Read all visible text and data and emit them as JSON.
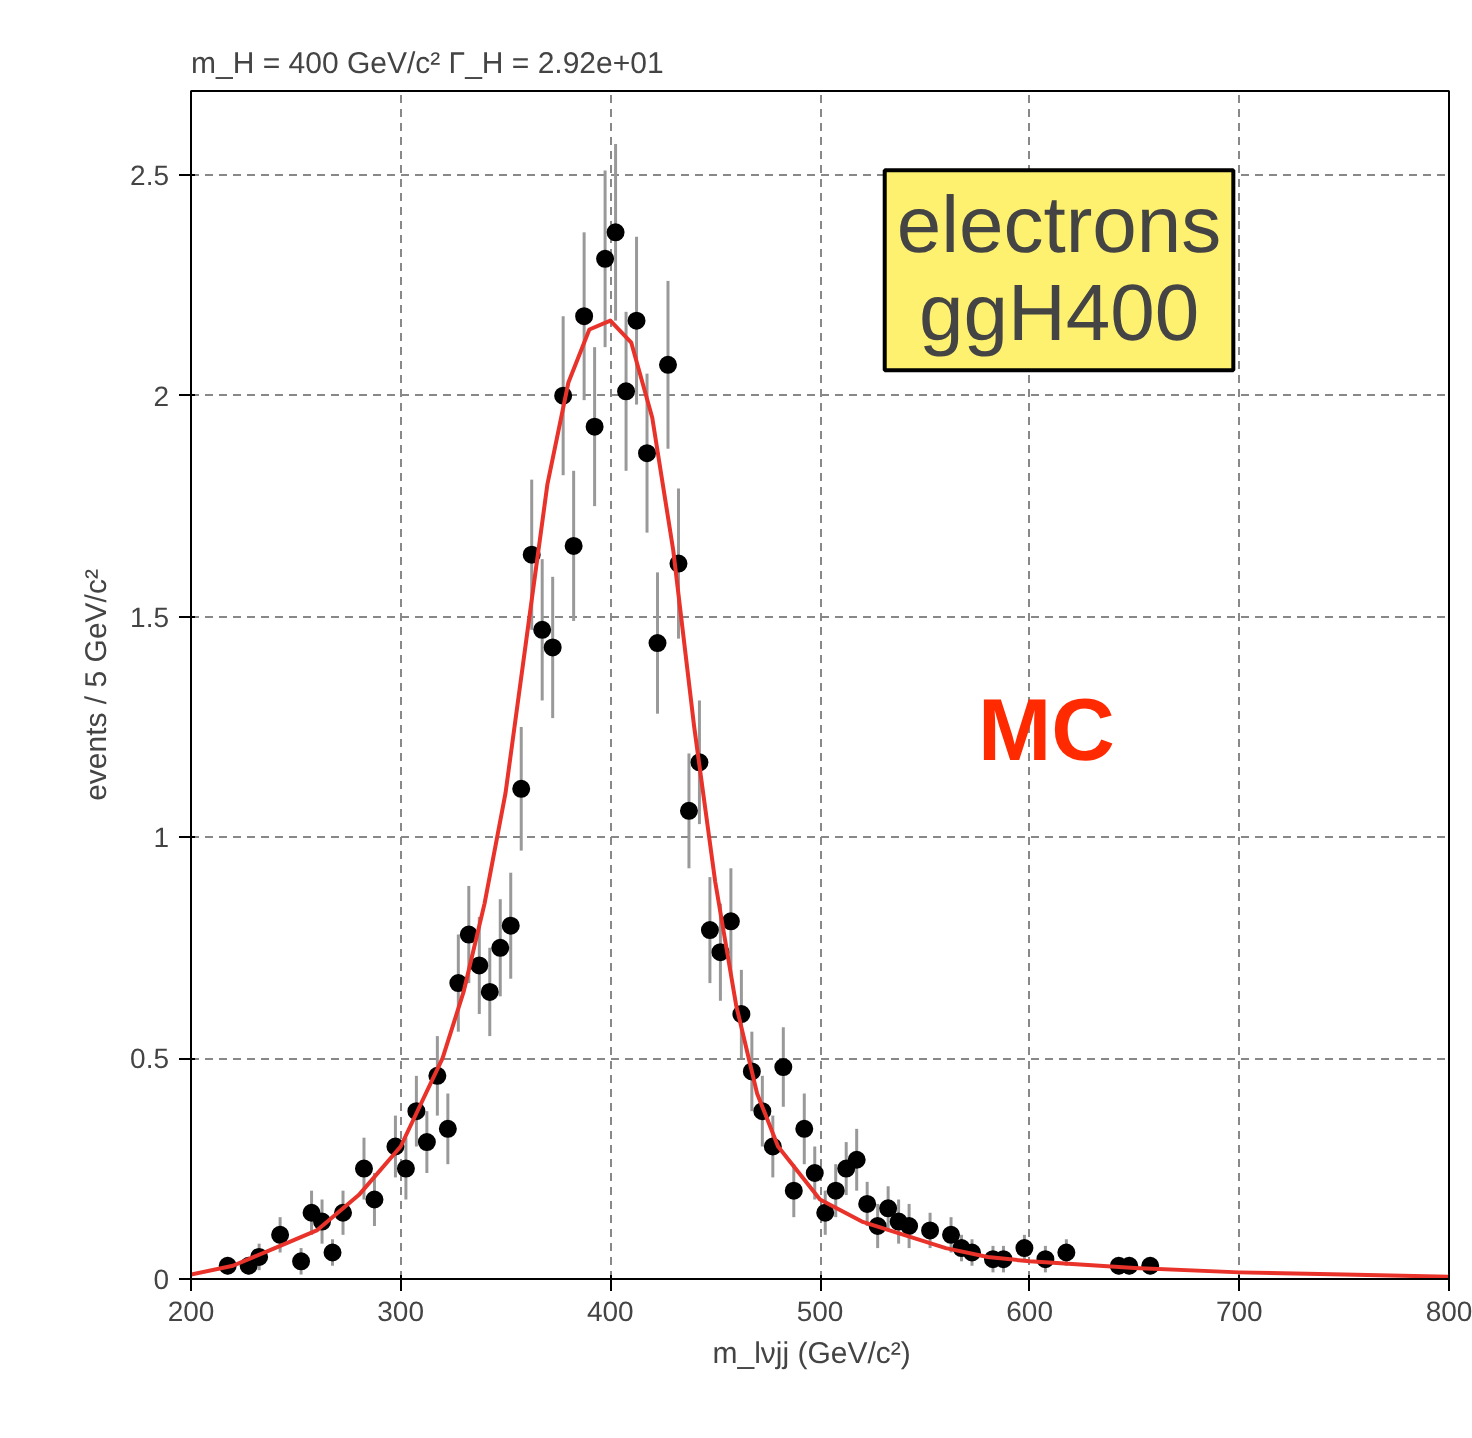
{
  "chart_data": {
    "type": "scatter",
    "title": "m_H = 400 GeV/c²   Γ_H = 2.92e+01",
    "xlabel": "m_lνjj   (GeV/c²)",
    "ylabel": "events / 5 GeV/c²",
    "xlim": [
      200,
      800
    ],
    "ylim": [
      0,
      2.69
    ],
    "xticks": [
      200,
      300,
      400,
      500,
      600,
      700,
      800
    ],
    "yticks": [
      0,
      0.5,
      1,
      1.5,
      2,
      2.5
    ],
    "grid": true,
    "annotations": [
      "electrons\nggH400",
      "MC"
    ],
    "series": [
      {
        "marker": "circle",
        "color": "#000000",
        "x": [
          217.5,
          227.5,
          232.5,
          242.5,
          252.5,
          257.5,
          262.5,
          267.5,
          272.5,
          282.5,
          287.5,
          297.5,
          302.5,
          307.5,
          312.5,
          317.5,
          322.5,
          327.5,
          332.5,
          337.5,
          342.5,
          347.5,
          352.5,
          357.5,
          362.5,
          367.5,
          372.5,
          377.5,
          382.5,
          387.5,
          392.5,
          397.5,
          402.5,
          407.5,
          412.5,
          417.5,
          422.5,
          427.5,
          432.5,
          437.5,
          442.5,
          447.5,
          452.5,
          457.5,
          462.5,
          467.5,
          472.5,
          477.5,
          482.5,
          487.5,
          492.5,
          497.5,
          502.5,
          507.5,
          512.5,
          517.5,
          522.5,
          527.5,
          532.5,
          537.5,
          542.5,
          552.5,
          562.5,
          567.5,
          572.5,
          582.5,
          587.5,
          597.5,
          607.5,
          617.5,
          642.5,
          647.5,
          657.5
        ],
        "values": [
          0.03,
          0.03,
          0.05,
          0.1,
          0.04,
          0.15,
          0.13,
          0.06,
          0.15,
          0.25,
          0.18,
          0.3,
          0.25,
          0.38,
          0.31,
          0.46,
          0.34,
          0.67,
          0.78,
          0.71,
          0.65,
          0.75,
          0.8,
          1.11,
          1.64,
          1.47,
          1.43,
          2.0,
          1.66,
          2.18,
          1.93,
          2.31,
          2.37,
          2.01,
          2.17,
          1.87,
          1.44,
          2.07,
          1.62,
          1.06,
          1.17,
          0.79,
          0.74,
          0.81,
          0.6,
          0.47,
          0.38,
          0.3,
          0.48,
          0.2,
          0.34,
          0.24,
          0.15,
          0.2,
          0.25,
          0.27,
          0.17,
          0.12,
          0.16,
          0.13,
          0.12,
          0.11,
          0.1,
          0.07,
          0.06,
          0.045,
          0.045,
          0.07,
          0.045,
          0.06,
          0.03,
          0.03,
          0.03
        ],
        "errors": [
          0.02,
          0.02,
          0.03,
          0.04,
          0.03,
          0.05,
          0.05,
          0.03,
          0.05,
          0.07,
          0.06,
          0.07,
          0.07,
          0.08,
          0.07,
          0.09,
          0.08,
          0.11,
          0.11,
          0.11,
          0.1,
          0.11,
          0.12,
          0.14,
          0.17,
          0.16,
          0.16,
          0.18,
          0.17,
          0.19,
          0.18,
          0.2,
          0.2,
          0.18,
          0.19,
          0.18,
          0.16,
          0.19,
          0.17,
          0.13,
          0.14,
          0.12,
          0.11,
          0.12,
          0.1,
          0.09,
          0.08,
          0.07,
          0.09,
          0.06,
          0.08,
          0.06,
          0.05,
          0.06,
          0.06,
          0.07,
          0.05,
          0.05,
          0.05,
          0.05,
          0.05,
          0.04,
          0.04,
          0.03,
          0.03,
          0.03,
          0.03,
          0.03,
          0.03,
          0.03,
          0.02,
          0.02,
          0.02
        ]
      },
      {
        "type": "line",
        "marker": "none",
        "color": "#e8322a",
        "x": [
          200,
          220,
          240,
          260,
          280,
          300,
          320,
          330,
          340,
          350,
          360,
          370,
          380,
          390,
          400,
          410,
          420,
          430,
          440,
          450,
          460,
          470,
          480,
          500,
          520,
          540,
          560,
          580,
          600,
          650,
          700,
          750,
          800
        ],
        "values": [
          0.01,
          0.03,
          0.07,
          0.11,
          0.19,
          0.3,
          0.5,
          0.65,
          0.85,
          1.1,
          1.45,
          1.8,
          2.03,
          2.15,
          2.17,
          2.12,
          1.95,
          1.65,
          1.25,
          0.9,
          0.62,
          0.42,
          0.3,
          0.18,
          0.13,
          0.1,
          0.07,
          0.05,
          0.04,
          0.025,
          0.015,
          0.01,
          0.005
        ]
      }
    ]
  }
}
